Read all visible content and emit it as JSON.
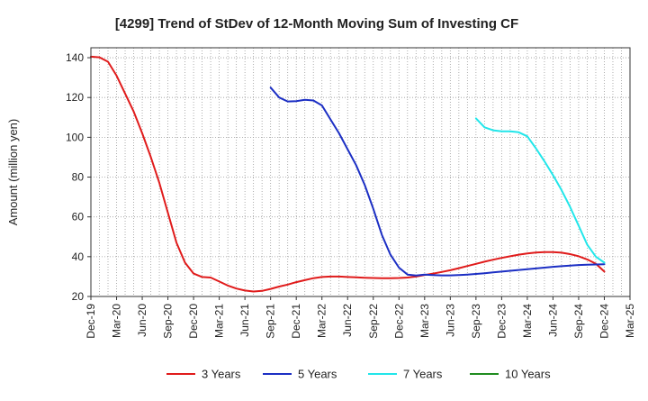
{
  "chart_data": {
    "type": "line",
    "title": "[4299]  Trend of StDev of 12-Month Moving Sum of Investing CF",
    "xlabel": "",
    "ylabel": "Amount (million yen)",
    "ylim": [
      20,
      145
    ],
    "yticks": [
      20,
      40,
      60,
      80,
      100,
      120,
      140
    ],
    "x_range": [
      "2019-12",
      "2025-03"
    ],
    "x_tick_labels": [
      "Dec-19",
      "Mar-20",
      "Jun-20",
      "Sep-20",
      "Dec-20",
      "Mar-21",
      "Jun-21",
      "Sep-21",
      "Dec-21",
      "Mar-22",
      "Jun-22",
      "Sep-22",
      "Dec-22",
      "Mar-23",
      "Jun-23",
      "Sep-23",
      "Dec-23",
      "Mar-24",
      "Jun-24",
      "Sep-24",
      "Dec-24",
      "Mar-25"
    ],
    "grid": true,
    "legend_position": "bottom",
    "series": [
      {
        "name": "3 Years",
        "color": "#e01b1b",
        "points": [
          [
            "2019-12",
            140.5
          ],
          [
            "2020-01",
            140.2
          ],
          [
            "2020-02",
            138
          ],
          [
            "2020-03",
            131
          ],
          [
            "2020-04",
            122
          ],
          [
            "2020-05",
            113
          ],
          [
            "2020-06",
            102
          ],
          [
            "2020-07",
            90
          ],
          [
            "2020-08",
            77
          ],
          [
            "2020-09",
            62
          ],
          [
            "2020-10",
            47
          ],
          [
            "2020-11",
            37
          ],
          [
            "2020-12",
            31.5
          ],
          [
            "2021-01",
            29.8
          ],
          [
            "2021-02",
            29.5
          ],
          [
            "2021-03",
            27.5
          ],
          [
            "2021-04",
            25.5
          ],
          [
            "2021-05",
            24
          ],
          [
            "2021-06",
            23
          ],
          [
            "2021-07",
            22.5
          ],
          [
            "2021-08",
            22.8
          ],
          [
            "2021-09",
            23.8
          ],
          [
            "2021-10",
            25
          ],
          [
            "2021-11",
            26
          ],
          [
            "2021-12",
            27.2
          ],
          [
            "2022-01",
            28.2
          ],
          [
            "2022-02",
            29.2
          ],
          [
            "2022-03",
            29.8
          ],
          [
            "2022-04",
            30
          ],
          [
            "2022-05",
            30
          ],
          [
            "2022-06",
            29.8
          ],
          [
            "2022-07",
            29.6
          ],
          [
            "2022-08",
            29.4
          ],
          [
            "2022-09",
            29.3
          ],
          [
            "2022-10",
            29.2
          ],
          [
            "2022-11",
            29.2
          ],
          [
            "2022-12",
            29.3
          ],
          [
            "2023-01",
            29.5
          ],
          [
            "2023-02",
            30
          ],
          [
            "2023-03",
            30.8
          ],
          [
            "2023-04",
            31.5
          ],
          [
            "2023-05",
            32.3
          ],
          [
            "2023-06",
            33.2
          ],
          [
            "2023-07",
            34.2
          ],
          [
            "2023-08",
            35.3
          ],
          [
            "2023-09",
            36.4
          ],
          [
            "2023-10",
            37.5
          ],
          [
            "2023-11",
            38.5
          ],
          [
            "2023-12",
            39.4
          ],
          [
            "2024-01",
            40.2
          ],
          [
            "2024-02",
            41
          ],
          [
            "2024-03",
            41.6
          ],
          [
            "2024-04",
            42.1
          ],
          [
            "2024-05",
            42.3
          ],
          [
            "2024-06",
            42.3
          ],
          [
            "2024-07",
            42
          ],
          [
            "2024-08",
            41.3
          ],
          [
            "2024-09",
            40.2
          ],
          [
            "2024-10",
            38.6
          ],
          [
            "2024-11",
            36.5
          ],
          [
            "2024-12",
            32.5
          ]
        ]
      },
      {
        "name": "5 Years",
        "color": "#1c2fc4",
        "points": [
          [
            "2021-09",
            125
          ],
          [
            "2021-10",
            120
          ],
          [
            "2021-11",
            118
          ],
          [
            "2021-12",
            118.2
          ],
          [
            "2022-01",
            118.8
          ],
          [
            "2022-02",
            118.5
          ],
          [
            "2022-03",
            116
          ],
          [
            "2022-04",
            109
          ],
          [
            "2022-05",
            102
          ],
          [
            "2022-06",
            94
          ],
          [
            "2022-07",
            86
          ],
          [
            "2022-08",
            76
          ],
          [
            "2022-09",
            64
          ],
          [
            "2022-10",
            51
          ],
          [
            "2022-11",
            41
          ],
          [
            "2022-12",
            34.5
          ],
          [
            "2023-01",
            31
          ],
          [
            "2023-02",
            30.5
          ],
          [
            "2023-03",
            31
          ],
          [
            "2023-04",
            30.8
          ],
          [
            "2023-05",
            30.6
          ],
          [
            "2023-06",
            30.6
          ],
          [
            "2023-07",
            30.8
          ],
          [
            "2023-08",
            31
          ],
          [
            "2023-09",
            31.3
          ],
          [
            "2023-10",
            31.7
          ],
          [
            "2023-11",
            32.1
          ],
          [
            "2023-12",
            32.5
          ],
          [
            "2024-01",
            32.9
          ],
          [
            "2024-02",
            33.3
          ],
          [
            "2024-03",
            33.7
          ],
          [
            "2024-04",
            34.1
          ],
          [
            "2024-05",
            34.5
          ],
          [
            "2024-06",
            34.9
          ],
          [
            "2024-07",
            35.2
          ],
          [
            "2024-08",
            35.5
          ],
          [
            "2024-09",
            35.8
          ],
          [
            "2024-10",
            36
          ],
          [
            "2024-11",
            36.1
          ],
          [
            "2024-12",
            36.2
          ]
        ]
      },
      {
        "name": "7 Years",
        "color": "#22e6ea",
        "points": [
          [
            "2023-09",
            109.5
          ],
          [
            "2023-10",
            105
          ],
          [
            "2023-11",
            103.5
          ],
          [
            "2023-12",
            103
          ],
          [
            "2024-01",
            103
          ],
          [
            "2024-02",
            102.5
          ],
          [
            "2024-03",
            100.5
          ],
          [
            "2024-04",
            94.5
          ],
          [
            "2024-05",
            88
          ],
          [
            "2024-06",
            81
          ],
          [
            "2024-07",
            73.5
          ],
          [
            "2024-08",
            65
          ],
          [
            "2024-09",
            55.5
          ],
          [
            "2024-10",
            46
          ],
          [
            "2024-11",
            40
          ],
          [
            "2024-12",
            37
          ]
        ]
      },
      {
        "name": "10 Years",
        "color": "#1f8c1f",
        "points": []
      }
    ]
  }
}
